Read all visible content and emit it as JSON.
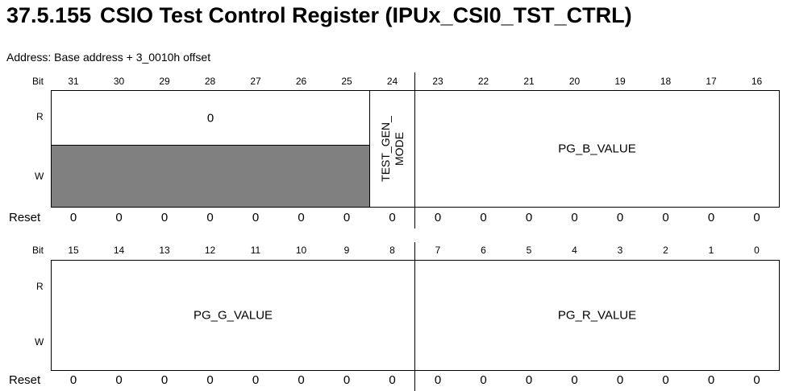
{
  "section": {
    "number": "37.5.155",
    "title": "CSIO Test Control Register (IPUx_CSI0_TST_CTRL)"
  },
  "address": "Address: Base address + 3_0010h offset",
  "labels": {
    "bit": "Bit",
    "read": "R",
    "write": "W",
    "reset": "Reset"
  },
  "upper": {
    "bits": [
      "31",
      "30",
      "29",
      "28",
      "27",
      "26",
      "25",
      "24",
      "23",
      "22",
      "21",
      "20",
      "19",
      "18",
      "17",
      "16"
    ],
    "reset": [
      "0",
      "0",
      "0",
      "0",
      "0",
      "0",
      "0",
      "0",
      "0",
      "0",
      "0",
      "0",
      "0",
      "0",
      "0",
      "0"
    ],
    "fields": {
      "reserved_read": "0",
      "test_gen_mode": "TEST_GEN_ MODE",
      "pg_b_value": "PG_B_VALUE"
    }
  },
  "lower": {
    "bits": [
      "15",
      "14",
      "13",
      "12",
      "11",
      "10",
      "9",
      "8",
      "7",
      "6",
      "5",
      "4",
      "3",
      "2",
      "1",
      "0"
    ],
    "reset": [
      "0",
      "0",
      "0",
      "0",
      "0",
      "0",
      "0",
      "0",
      "0",
      "0",
      "0",
      "0",
      "0",
      "0",
      "0",
      "0"
    ],
    "fields": {
      "pg_g_value": "PG_G_VALUE",
      "pg_r_value": "PG_R_VALUE"
    }
  },
  "colors": {
    "reserved_fill": "#808080",
    "border": "#000000"
  }
}
